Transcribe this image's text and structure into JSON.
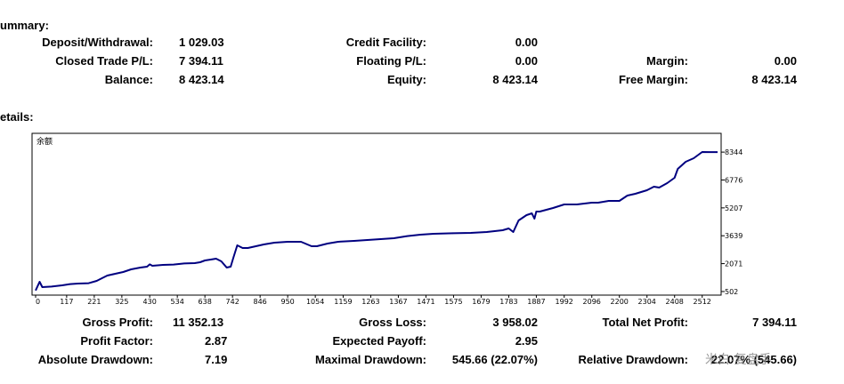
{
  "summary": {
    "heading": "ummary:",
    "deposit_withdrawal": {
      "label": "Deposit/Withdrawal:",
      "value": "1 029.03"
    },
    "credit_facility": {
      "label": "Credit Facility:",
      "value": "0.00"
    },
    "closed_trade_pl": {
      "label": "Closed Trade P/L:",
      "value": "7 394.11"
    },
    "floating_pl": {
      "label": "Floating P/L:",
      "value": "0.00"
    },
    "margin": {
      "label": "Margin:",
      "value": "0.00"
    },
    "balance": {
      "label": "Balance:",
      "value": "8 423.14"
    },
    "equity": {
      "label": "Equity:",
      "value": "8 423.14"
    },
    "free_margin": {
      "label": "Free Margin:",
      "value": "8 423.14"
    }
  },
  "details": {
    "heading": "etails:"
  },
  "chart_data": {
    "type": "line",
    "title": "余额",
    "line_color": "#000080",
    "grid": false,
    "xlim": [
      0,
      2570
    ],
    "ylim": [
      300,
      9400
    ],
    "x_ticks": [
      0,
      117,
      221,
      325,
      430,
      534,
      638,
      742,
      846,
      950,
      1054,
      1159,
      1263,
      1367,
      1471,
      1575,
      1679,
      1783,
      1887,
      1992,
      2096,
      2200,
      2304,
      2408,
      2512
    ],
    "y_ticks": [
      502,
      2071,
      3639,
      5207,
      6776,
      8344
    ],
    "series": [
      {
        "x": [
          0,
          15,
          25,
          60,
          100,
          130,
          160,
          200,
          230,
          250,
          270,
          300,
          330,
          360,
          395,
          420,
          430,
          440,
          480,
          520,
          560,
          600,
          620,
          638,
          660,
          680,
          700,
          720,
          735,
          745,
          760,
          780,
          800,
          830,
          860,
          900,
          950,
          1000,
          1040,
          1060,
          1100,
          1140,
          1200,
          1250,
          1300,
          1350,
          1400,
          1450,
          1500,
          1575,
          1640,
          1700,
          1760,
          1783,
          1800,
          1820,
          1850,
          1870,
          1880,
          1887,
          1900,
          1950,
          1992,
          2040,
          2096,
          2120,
          2160,
          2200,
          2230,
          2260,
          2304,
          2330,
          2350,
          2380,
          2408,
          2420,
          2450,
          2480,
          2512,
          2540,
          2570
        ],
        "y": [
          560,
          1050,
          750,
          780,
          850,
          920,
          950,
          970,
          1100,
          1250,
          1400,
          1500,
          1600,
          1750,
          1850,
          1900,
          2030,
          1950,
          2000,
          2020,
          2080,
          2100,
          2150,
          2250,
          2300,
          2350,
          2200,
          1850,
          1900,
          2400,
          3100,
          2950,
          2950,
          3050,
          3150,
          3250,
          3300,
          3300,
          3050,
          3050,
          3200,
          3300,
          3350,
          3400,
          3450,
          3500,
          3620,
          3700,
          3750,
          3780,
          3800,
          3850,
          3950,
          4050,
          3850,
          4500,
          4800,
          4900,
          4600,
          5000,
          5000,
          5200,
          5400,
          5400,
          5500,
          5500,
          5600,
          5600,
          5900,
          6000,
          6200,
          6400,
          6350,
          6600,
          6900,
          7400,
          7800,
          8000,
          8350,
          8344,
          8344
        ]
      }
    ]
  },
  "stats": {
    "gross_profit": {
      "label": "Gross Profit:",
      "value": "11 352.13"
    },
    "gross_loss": {
      "label": "Gross Loss:",
      "value": "3 958.02"
    },
    "total_net_profit": {
      "label": "Total Net Profit:",
      "value": "7 394.11"
    },
    "profit_factor": {
      "label": "Profit Factor:",
      "value": "2.87"
    },
    "expected_payoff": {
      "label": "Expected Payoff:",
      "value": "2.95"
    },
    "absolute_drawdown": {
      "label": "Absolute Drawdown:",
      "value": "7.19"
    },
    "maximal_drawdown": {
      "label": "Maximal Drawdown:",
      "value": "545.66 (22.07%)"
    },
    "relative_drawdown": {
      "label": "Relative Drawdown:",
      "value": "22.07% (545.66)"
    }
  },
  "watermark": {
    "text": "米白·复盘手"
  }
}
